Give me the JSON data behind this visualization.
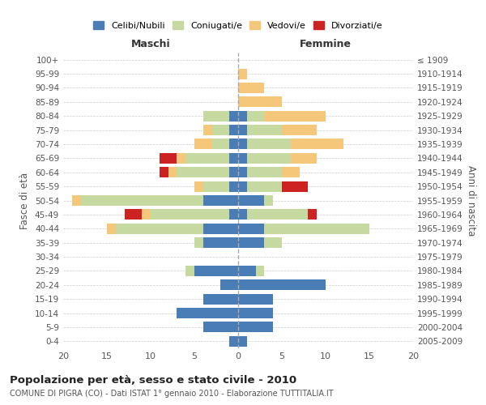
{
  "age_groups": [
    "100+",
    "95-99",
    "90-94",
    "85-89",
    "80-84",
    "75-79",
    "70-74",
    "65-69",
    "60-64",
    "55-59",
    "50-54",
    "45-49",
    "40-44",
    "35-39",
    "30-34",
    "25-29",
    "20-24",
    "15-19",
    "10-14",
    "5-9",
    "0-4"
  ],
  "birth_years": [
    "≤ 1909",
    "1910-1914",
    "1915-1919",
    "1920-1924",
    "1925-1929",
    "1930-1934",
    "1935-1939",
    "1940-1944",
    "1945-1949",
    "1950-1954",
    "1955-1959",
    "1960-1964",
    "1965-1969",
    "1970-1974",
    "1975-1979",
    "1980-1984",
    "1985-1989",
    "1990-1994",
    "1995-1999",
    "2000-2004",
    "2005-2009"
  ],
  "maschi": {
    "celibi": [
      0,
      0,
      0,
      0,
      1,
      1,
      1,
      1,
      1,
      1,
      4,
      1,
      4,
      4,
      0,
      5,
      2,
      4,
      7,
      4,
      1
    ],
    "coniugati": [
      0,
      0,
      0,
      0,
      3,
      2,
      2,
      5,
      6,
      3,
      14,
      9,
      10,
      1,
      0,
      1,
      0,
      0,
      0,
      0,
      0
    ],
    "vedovi": [
      0,
      0,
      0,
      0,
      0,
      1,
      2,
      1,
      1,
      1,
      1,
      1,
      1,
      0,
      0,
      0,
      0,
      0,
      0,
      0,
      0
    ],
    "divorziati": [
      0,
      0,
      0,
      0,
      0,
      0,
      0,
      2,
      1,
      0,
      0,
      2,
      0,
      0,
      0,
      0,
      0,
      0,
      0,
      0,
      0
    ]
  },
  "femmine": {
    "nubili": [
      0,
      0,
      0,
      0,
      1,
      1,
      1,
      1,
      1,
      1,
      3,
      1,
      3,
      3,
      0,
      2,
      10,
      4,
      4,
      4,
      1
    ],
    "coniugate": [
      0,
      0,
      0,
      0,
      2,
      4,
      5,
      5,
      4,
      4,
      1,
      7,
      12,
      2,
      0,
      1,
      0,
      0,
      0,
      0,
      0
    ],
    "vedove": [
      0,
      1,
      3,
      5,
      7,
      4,
      6,
      3,
      2,
      0,
      0,
      0,
      0,
      0,
      0,
      0,
      0,
      0,
      0,
      0,
      0
    ],
    "divorziate": [
      0,
      0,
      0,
      0,
      0,
      0,
      0,
      0,
      0,
      3,
      0,
      1,
      0,
      0,
      0,
      0,
      0,
      0,
      0,
      0,
      0
    ]
  },
  "colors": {
    "celibi": "#4a7db5",
    "coniugati": "#c5d9a0",
    "vedovi": "#f5c77a",
    "divorziati": "#cc2222"
  },
  "legend_labels": [
    "Celibi/Nubili",
    "Coniugati/e",
    "Vedovi/e",
    "Divorziati/e"
  ],
  "title": "Popolazione per età, sesso e stato civile - 2010",
  "subtitle": "COMUNE DI PIGRA (CO) - Dati ISTAT 1° gennaio 2010 - Elaborazione TUTTITALIA.IT",
  "xlabel_left": "Maschi",
  "xlabel_right": "Femmine",
  "ylabel_left": "Fasce di età",
  "ylabel_right": "Anni di nascita",
  "xlim": 20,
  "bg_color": "#ffffff",
  "grid_color": "#cccccc"
}
